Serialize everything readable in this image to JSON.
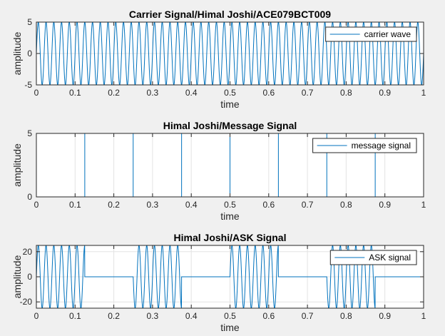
{
  "chart_data": [
    {
      "type": "line",
      "title": "Carrier Signal/Himal Joshi/ACE079BCT009",
      "xlabel": "time",
      "ylabel": "amplitude",
      "xlim": [
        0,
        1
      ],
      "ylim": [
        -5,
        5
      ],
      "xticks": [
        "0",
        "0.1",
        "0.2",
        "0.3",
        "0.4",
        "0.5",
        "0.6",
        "0.7",
        "0.8",
        "0.9",
        "1"
      ],
      "yticks": [
        "-5",
        "0",
        "5"
      ],
      "grid": true,
      "legend_position": "top-right",
      "series": [
        {
          "name": "carrier wave",
          "kind": "sine",
          "amplitude": 5,
          "frequency_hz": 50,
          "color": "#0072bd"
        }
      ]
    },
    {
      "type": "line",
      "title": "Himal Joshi/Message Signal",
      "xlabel": "time",
      "ylabel": "amplitude",
      "xlim": [
        0,
        1
      ],
      "ylim": [
        0,
        5
      ],
      "xticks": [
        "0",
        "0.1",
        "0.2",
        "0.3",
        "0.4",
        "0.5",
        "0.6",
        "0.7",
        "0.8",
        "0.9",
        "1"
      ],
      "yticks": [
        "0",
        "5"
      ],
      "grid": true,
      "legend_position": "top-right",
      "series": [
        {
          "name": "message signal",
          "kind": "square",
          "bits": [
            1,
            0,
            1,
            0,
            1,
            0,
            1,
            0
          ],
          "bit_duration": 0.125,
          "level": 5,
          "color": "#0072bd"
        }
      ]
    },
    {
      "type": "line",
      "title": "Himal Joshi/ASK Signal",
      "xlabel": "time",
      "ylabel": "amplitude",
      "xlim": [
        0,
        1
      ],
      "ylim": [
        -25,
        25
      ],
      "xticks": [
        "0",
        "0.1",
        "0.2",
        "0.3",
        "0.4",
        "0.5",
        "0.6",
        "0.7",
        "0.8",
        "0.9",
        "1"
      ],
      "yticks": [
        "-20",
        "0",
        "20"
      ],
      "grid": true,
      "legend_position": "top-right",
      "series": [
        {
          "name": "ASK signal",
          "kind": "ask",
          "bits": [
            1,
            0,
            1,
            0,
            1,
            0,
            1,
            0
          ],
          "bit_duration": 0.125,
          "amplitude": 25,
          "frequency_hz": 50,
          "color": "#0072bd"
        }
      ]
    }
  ]
}
